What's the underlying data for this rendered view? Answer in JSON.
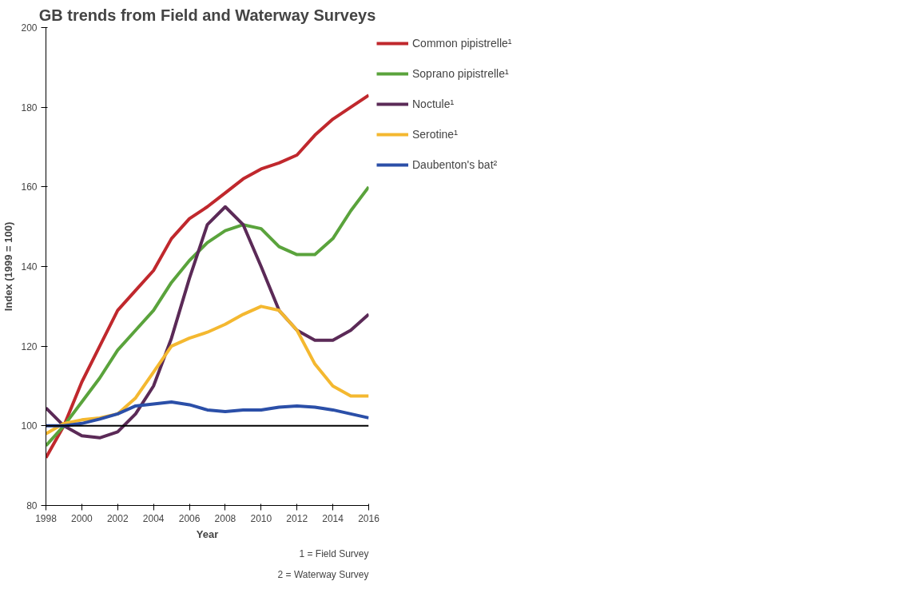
{
  "chart_data": {
    "type": "line",
    "title": "GB trends from Field and Waterway Surveys",
    "xlabel": "Year",
    "ylabel": "Index (1999 = 100)",
    "x": [
      1998,
      1999,
      2000,
      2001,
      2002,
      2003,
      2004,
      2005,
      2006,
      2007,
      2008,
      2009,
      2010,
      2011,
      2012,
      2013,
      2014,
      2015,
      2016
    ],
    "series": [
      {
        "name": "Common pipistrelle¹",
        "color": "#c0282d",
        "values": [
          92,
          100,
          111,
          120,
          129,
          134,
          139,
          147,
          152,
          155,
          158.5,
          162,
          164.5,
          166,
          168,
          173,
          177,
          180,
          183
        ]
      },
      {
        "name": "Soprano pipistrelle¹",
        "color": "#5aa33c",
        "values": [
          95,
          100,
          106,
          112,
          119,
          124,
          129,
          136,
          141.5,
          146,
          149,
          150.5,
          149.5,
          145,
          143,
          143,
          147,
          154,
          160
        ]
      },
      {
        "name": "Noctule¹",
        "color": "#5b2a57",
        "values": [
          104.5,
          100,
          97.5,
          97,
          98.5,
          103,
          110,
          122,
          137,
          150.5,
          155,
          150.5,
          140,
          129,
          124,
          121.5,
          121.5,
          124,
          128
        ]
      },
      {
        "name": "Serotine¹",
        "color": "#f4b830",
        "values": [
          98,
          100.6,
          101.5,
          102,
          103,
          107,
          113.5,
          120,
          122,
          123.5,
          125.5,
          128,
          130,
          129,
          124,
          115.5,
          110,
          107.5,
          107.5
        ]
      },
      {
        "name": "Daubenton's bat²",
        "color": "#2b4fa8",
        "values": [
          100,
          100,
          100.6,
          101.7,
          103,
          105,
          105.5,
          106,
          105.3,
          104,
          103.6,
          104,
          104,
          104.7,
          105,
          104.7,
          104,
          103,
          102
        ]
      }
    ],
    "xlim": [
      1998,
      2016
    ],
    "xticks": [
      1998,
      2000,
      2002,
      2004,
      2006,
      2008,
      2010,
      2012,
      2014,
      2016
    ],
    "ylim": [
      80,
      200
    ],
    "yticks": [
      80,
      100,
      120,
      140,
      160,
      180,
      200
    ],
    "ref_lines": [
      {
        "axis": "y",
        "value": 100,
        "color": "#000000"
      }
    ],
    "annotations": [
      "1 = Field Survey",
      "2 = Waterway Survey"
    ],
    "grid": false,
    "legend": "right",
    "marker": "none",
    "line_style": "solid"
  }
}
